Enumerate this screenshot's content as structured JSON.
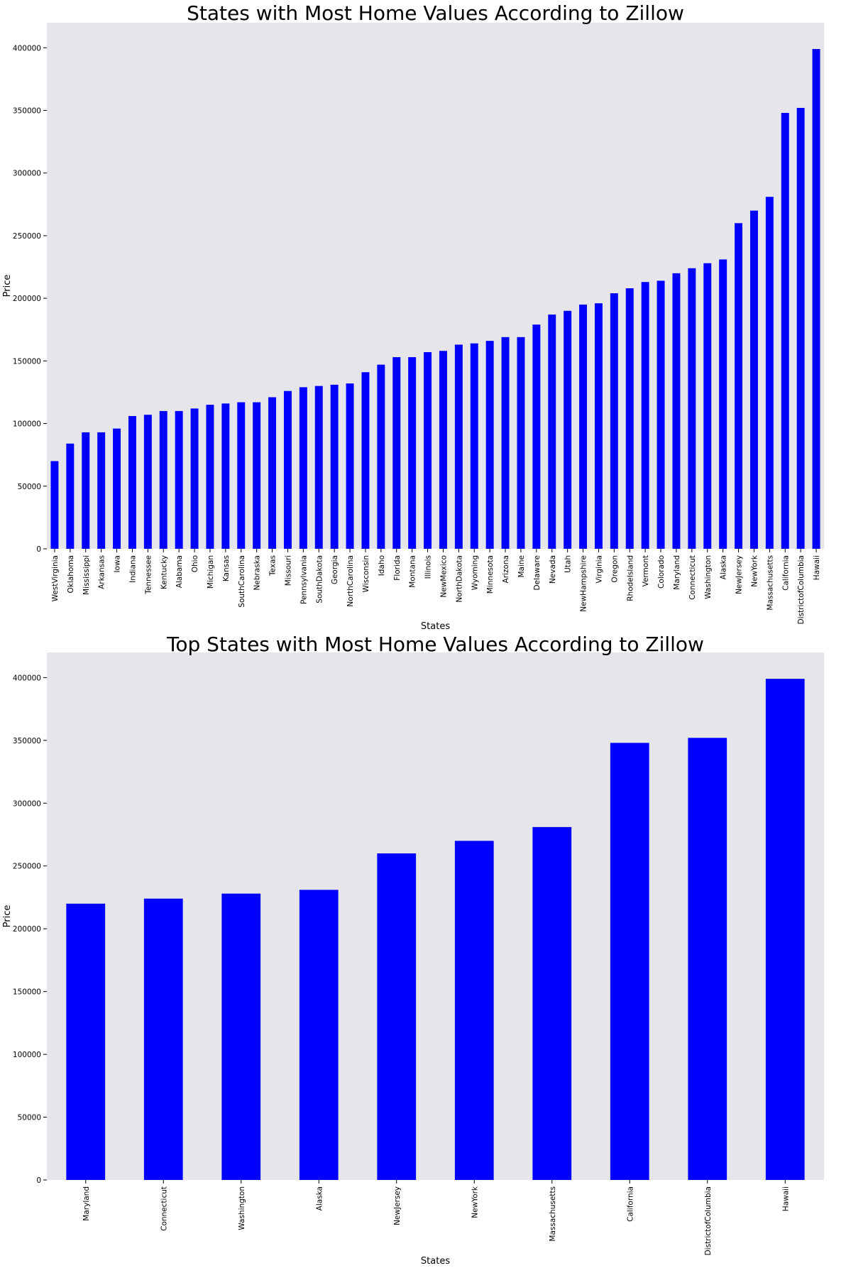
{
  "chart_data": [
    {
      "type": "bar",
      "title": "States with Most Home Values According to Zillow",
      "xlabel": "States",
      "ylabel": "Price",
      "ylim": [
        0,
        420000
      ],
      "yticks": [
        0,
        50000,
        100000,
        150000,
        200000,
        250000,
        300000,
        350000,
        400000
      ],
      "grid": false,
      "legend": "none",
      "colors": {
        "bar": "#0000ff",
        "plot_background": "#e5e5ea"
      },
      "categories": [
        "WestVirginia",
        "Oklahoma",
        "Mississippi",
        "Arkansas",
        "Iowa",
        "Indiana",
        "Tennessee",
        "Kentucky",
        "Alabama",
        "Ohio",
        "Michigan",
        "Kansas",
        "SouthCarolina",
        "Nebraska",
        "Texas",
        "Missouri",
        "Pennsylvania",
        "SouthDakota",
        "Georgia",
        "NorthCarolina",
        "Wisconsin",
        "Idaho",
        "Florida",
        "Montana",
        "Illinois",
        "NewMexico",
        "NorthDakota",
        "Wyoming",
        "Minnesota",
        "Arizona",
        "Maine",
        "Delaware",
        "Nevada",
        "Utah",
        "NewHampshire",
        "Virginia",
        "Oregon",
        "RhodeIsland",
        "Vermont",
        "Colorado",
        "Maryland",
        "Connecticut",
        "Washington",
        "Alaska",
        "NewJersey",
        "NewYork",
        "Massachusetts",
        "California",
        "DistrictofColumbia",
        "Hawaii"
      ],
      "values": [
        70000,
        84000,
        93000,
        93000,
        96000,
        106000,
        107000,
        110000,
        110000,
        112000,
        115000,
        116000,
        117000,
        117000,
        121000,
        126000,
        129000,
        130000,
        131000,
        132000,
        141000,
        147000,
        153000,
        153000,
        157000,
        158000,
        163000,
        164000,
        166000,
        169000,
        169000,
        179000,
        187000,
        190000,
        195000,
        196000,
        204000,
        208000,
        213000,
        214000,
        220000,
        224000,
        228000,
        231000,
        260000,
        270000,
        281000,
        348000,
        352000,
        399000
      ]
    },
    {
      "type": "bar",
      "title": "Top States with Most Home Values According to Zillow",
      "xlabel": "States",
      "ylabel": "Price",
      "ylim": [
        0,
        420000
      ],
      "yticks": [
        0,
        50000,
        100000,
        150000,
        200000,
        250000,
        300000,
        350000,
        400000
      ],
      "grid": false,
      "legend": "none",
      "colors": {
        "bar": "#0000ff",
        "plot_background": "#e5e5ea"
      },
      "categories": [
        "Maryland",
        "Connecticut",
        "Washington",
        "Alaska",
        "NewJersey",
        "NewYork",
        "Massachusetts",
        "California",
        "DistrictofColumbia",
        "Hawaii"
      ],
      "values": [
        220000,
        224000,
        228000,
        231000,
        260000,
        270000,
        281000,
        348000,
        352000,
        399000
      ]
    }
  ]
}
